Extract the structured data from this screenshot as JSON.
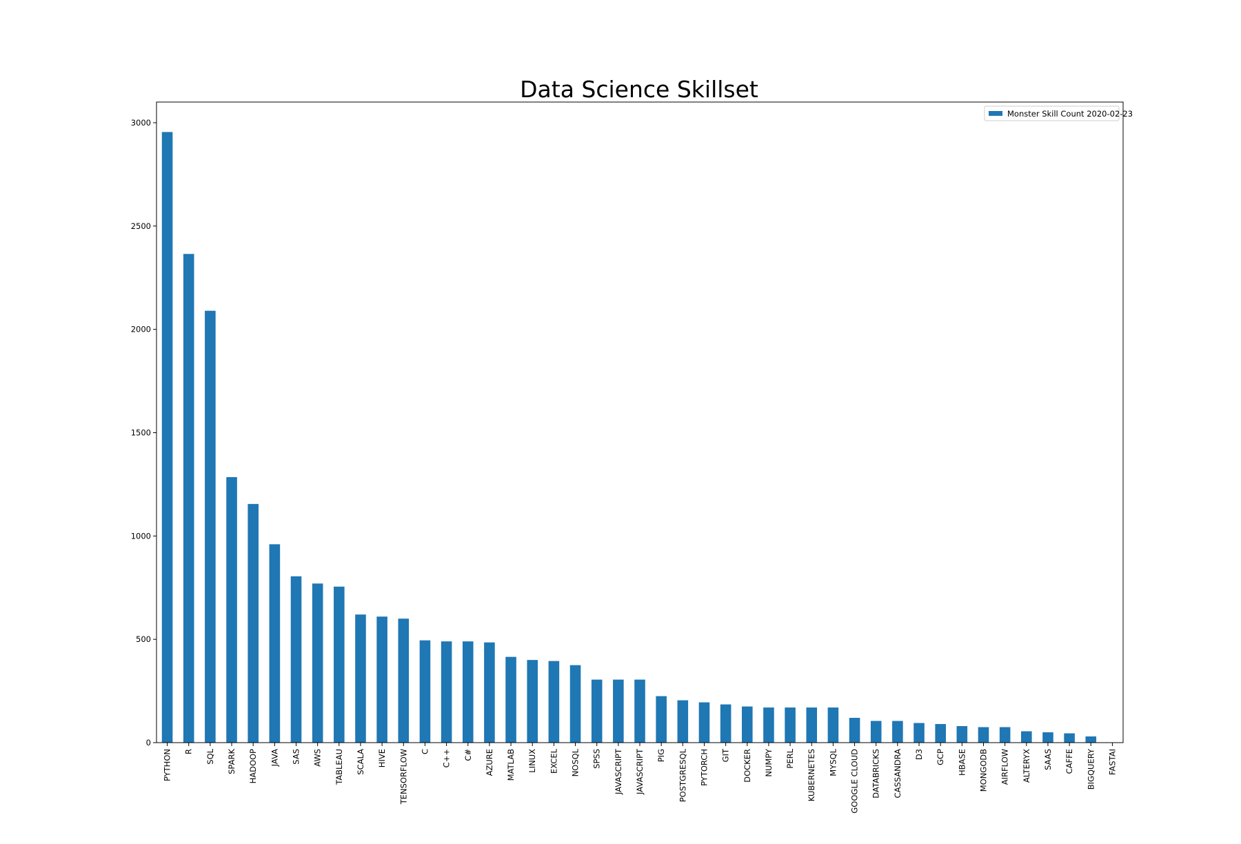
{
  "chart_data": {
    "type": "bar",
    "title": "Data Science Skillset",
    "xlabel": "",
    "ylabel": "",
    "ylim": [
      0,
      3100
    ],
    "yticks": [
      0,
      500,
      1000,
      1500,
      2000,
      2500,
      3000
    ],
    "grid": false,
    "legend_position": "top-right",
    "categories": [
      "PYTHON",
      "R",
      "SQL",
      "SPARK",
      "HADOOP",
      "JAVA",
      "SAS",
      "AWS",
      "TABLEAU",
      "SCALA",
      "HIVE",
      "TENSORFLOW",
      "C",
      "C++",
      "C#",
      "AZURE",
      "MATLAB",
      "LINUX",
      "EXCEL",
      "NOSQL",
      "SPSS",
      "JAVASCRIPT",
      "JAVASCRIPT",
      "PIG",
      "POSTGRESQL",
      "PYTORCH",
      "GIT",
      "DOCKER",
      "NUMPY",
      "PERL",
      "KUBERNETES",
      "MYSQL",
      "GOOGLE CLOUD",
      "DATABRICKS",
      "CASSANDRA",
      "D3",
      "GCP",
      "HBASE",
      "MONGODB",
      "AIRFLOW",
      "ALTERYX",
      "SAAS",
      "CAFFE",
      "BIGQUERY",
      "FASTAI"
    ],
    "series": [
      {
        "name": "Monster Skill Count 2020-02-23",
        "color": "#1f77b4",
        "values": [
          2955,
          2365,
          2090,
          1285,
          1155,
          960,
          805,
          770,
          755,
          620,
          610,
          600,
          495,
          490,
          490,
          485,
          415,
          400,
          395,
          375,
          305,
          305,
          305,
          225,
          205,
          195,
          185,
          175,
          170,
          170,
          170,
          170,
          120,
          105,
          105,
          95,
          90,
          80,
          75,
          75,
          55,
          50,
          45,
          30,
          0
        ]
      }
    ]
  }
}
